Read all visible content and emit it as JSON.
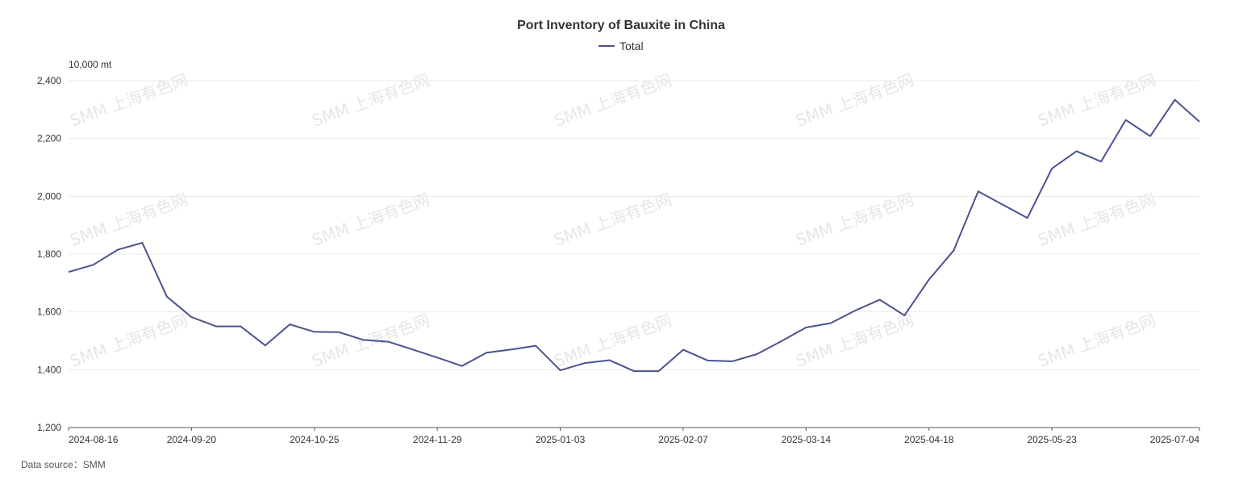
{
  "watermark": "SMM 上海有色网",
  "chart_data": {
    "type": "line",
    "title": "Port Inventory of Bauxite in China",
    "unit": "10,000 mt",
    "xlabel": "",
    "ylabel": "",
    "ylim": [
      1200,
      2400
    ],
    "yticks": [
      1200,
      1400,
      1600,
      1800,
      2000,
      2200,
      2400
    ],
    "ytick_labels": [
      "1,200",
      "1,400",
      "1,600",
      "1,800",
      "2,000",
      "2,200",
      "2,400"
    ],
    "grid": true,
    "legend_position": "top-center",
    "x_tick_labels": [
      "2024-08-16",
      "2024-09-20",
      "2024-10-25",
      "2024-11-29",
      "2025-01-03",
      "2025-02-07",
      "2025-03-14",
      "2025-04-18",
      "2025-05-23",
      "2025-07-04"
    ],
    "x": [
      "2024-08-16",
      "2024-08-23",
      "2024-08-30",
      "2024-09-06",
      "2024-09-13",
      "2024-09-20",
      "2024-09-27",
      "2024-10-04",
      "2024-10-11",
      "2024-10-18",
      "2024-10-25",
      "2024-11-01",
      "2024-11-08",
      "2024-11-15",
      "2024-11-22",
      "2024-11-29",
      "2024-12-06",
      "2024-12-13",
      "2024-12-20",
      "2024-12-27",
      "2025-01-03",
      "2025-01-10",
      "2025-01-17",
      "2025-01-24",
      "2025-01-31",
      "2025-02-07",
      "2025-02-14",
      "2025-02-21",
      "2025-02-28",
      "2025-03-07",
      "2025-03-14",
      "2025-03-21",
      "2025-03-28",
      "2025-04-04",
      "2025-04-11",
      "2025-04-18",
      "2025-04-25",
      "2025-05-02",
      "2025-05-09",
      "2025-05-16",
      "2025-05-23",
      "2025-05-30",
      "2025-06-06",
      "2025-06-13",
      "2025-06-20",
      "2025-06-27",
      "2025-07-04"
    ],
    "series": [
      {
        "name": "Total",
        "color": "#4a5290",
        "values": [
          1738,
          1763,
          1815,
          1839,
          1653,
          1582,
          1550,
          1550,
          1484,
          1557,
          1531,
          1530,
          1503,
          1497,
          1470,
          1442,
          1413,
          1459,
          1470,
          1483,
          1398,
          1423,
          1433,
          1395,
          1395,
          1469,
          1432,
          1429,
          1454,
          1499,
          1546,
          1561,
          1605,
          1642,
          1588,
          1712,
          1812,
          2017,
          1971,
          1925,
          2096,
          2156,
          2120,
          2264,
          2208,
          2334,
          2258
        ]
      }
    ]
  },
  "source": {
    "text": "Data source：SMM"
  }
}
